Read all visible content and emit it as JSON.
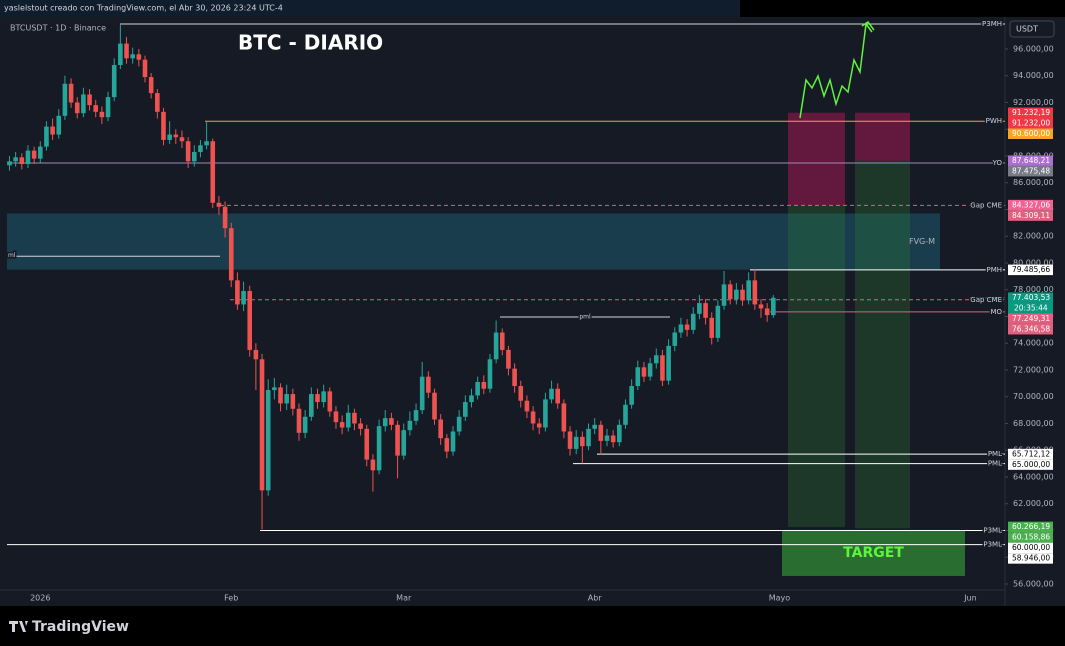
{
  "chart_data": {
    "type": "candlestick",
    "title": "BTC - DIARIO",
    "credit": "yaslelstout creado con TradingView.com, el Abr 30, 2026 23:24 UTC-4",
    "symbol": "BTCUSDT · 1D · Binance",
    "currency": "USDT",
    "brand": "TradingView",
    "countdown": "20:35:44",
    "up_color": "#26a69a",
    "down_color": "#ef5350",
    "categories": [
      null,
      null,
      null,
      null,
      null,
      "2026",
      null,
      null,
      null,
      null,
      null,
      null,
      null,
      null,
      null,
      null,
      null,
      null,
      null,
      null,
      null,
      null,
      null,
      null,
      null,
      null,
      null,
      null,
      null,
      null,
      null,
      null,
      null,
      null,
      null,
      null,
      "Feb",
      null,
      null,
      null,
      null,
      null,
      null,
      null,
      null,
      null,
      null,
      null,
      null,
      null,
      null,
      null,
      null,
      null,
      null,
      null,
      null,
      null,
      null,
      null,
      null,
      null,
      null,
      null,
      "Mar",
      null,
      null,
      null,
      null,
      null,
      null,
      null,
      null,
      null,
      null,
      null,
      null,
      null,
      null,
      null,
      null,
      null,
      null,
      null,
      null,
      null,
      null,
      null,
      null,
      null,
      null,
      null,
      null,
      null,
      null,
      "Abr",
      null,
      null,
      null,
      null,
      null,
      null,
      null,
      null,
      null,
      null,
      null,
      null,
      null,
      null,
      null,
      null,
      null,
      null,
      null,
      null,
      null,
      null,
      null,
      null,
      null,
      null,
      null,
      null,
      null,
      "Mayo",
      null,
      null,
      null,
      null,
      null,
      null,
      null,
      null,
      null,
      null,
      null,
      null,
      null,
      null,
      null,
      null,
      null,
      null,
      null,
      null,
      null,
      null,
      null,
      null,
      null,
      null,
      null,
      null,
      null,
      null,
      "Jun"
    ],
    "open": [
      87300,
      87600,
      87900,
      87400,
      88400,
      87800,
      88700,
      90200,
      89600,
      91000,
      93400,
      92000,
      91200,
      92600,
      91800,
      91300,
      90900,
      92400,
      94800,
      96400,
      95300,
      95600,
      95200,
      93900,
      92700,
      91300,
      89200,
      89600,
      89400,
      89100,
      87600,
      88300,
      88800,
      89100,
      84500,
      84200,
      82600,
      78700,
      76900,
      77900,
      73500,
      72800,
      63000,
      70500,
      70700,
      69500,
      70200,
      69100,
      67300,
      68500,
      70200,
      69600,
      70400,
      68900,
      68100,
      67700,
      68800,
      68000,
      67600,
      65300,
      64500,
      67800,
      68400,
      67900,
      65600,
      67500,
      68200,
      69000,
      71500,
      70300,
      68300,
      66900,
      65900,
      67400,
      68500,
      69600,
      70100,
      71100,
      70600,
      72800,
      74800,
      73500,
      72100,
      70800,
      69700,
      68900,
      68000,
      67700,
      69800,
      70600,
      69500,
      67400,
      66100,
      67000,
      66300,
      67600,
      67900,
      66700,
      67100,
      66600,
      67900,
      69400,
      70800,
      72200,
      71500,
      72500,
      73100,
      71200,
      73800,
      74800,
      75400,
      75000,
      76200,
      77000,
      75900,
      74400,
      76800,
      78400,
      77300,
      78000,
      77200,
      78700,
      76900,
      76600,
      76100,
      null,
      null,
      null,
      null,
      null,
      null,
      null,
      null,
      null,
      null,
      null,
      null,
      null,
      null,
      null,
      null,
      null,
      null,
      null,
      null,
      null,
      null,
      null,
      null,
      null,
      null,
      null,
      null,
      null,
      null,
      null,
      null
    ],
    "high": [
      88000,
      88300,
      88200,
      88800,
      88700,
      89100,
      90600,
      90800,
      91500,
      94000,
      93800,
      92400,
      93100,
      93000,
      92200,
      91700,
      92800,
      95300,
      97800,
      96900,
      96100,
      96000,
      95500,
      94200,
      93000,
      91600,
      90600,
      90000,
      89900,
      89400,
      88800,
      89200,
      90600,
      89300,
      85000,
      84600,
      83000,
      79300,
      78600,
      78300,
      74000,
      73200,
      71300,
      71400,
      71000,
      70900,
      70600,
      69500,
      69000,
      70700,
      70600,
      70900,
      70700,
      69300,
      68600,
      69400,
      69100,
      68400,
      67900,
      65700,
      68300,
      69000,
      68800,
      68200,
      68000,
      68900,
      69500,
      72600,
      71900,
      70600,
      68700,
      67200,
      67800,
      69000,
      70100,
      70600,
      71500,
      71600,
      73200,
      75700,
      75100,
      73800,
      72500,
      71200,
      70100,
      69300,
      68400,
      70300,
      71200,
      71000,
      69800,
      67800,
      67500,
      67400,
      68000,
      68400,
      68200,
      67600,
      67500,
      68300,
      69800,
      71300,
      72700,
      72600,
      72900,
      73600,
      73500,
      74300,
      75200,
      75900,
      75800,
      76700,
      77600,
      77300,
      76300,
      77200,
      79400,
      78700,
      78500,
      78400,
      79300,
      79500,
      77300,
      77000,
      77600,
      null,
      null,
      null,
      null,
      null,
      null,
      null,
      null,
      null,
      null,
      null,
      null,
      null,
      null,
      null,
      null,
      null,
      null,
      null,
      null,
      null,
      null,
      null,
      null,
      null,
      null,
      null,
      null,
      null,
      null,
      null,
      null
    ],
    "low": [
      86900,
      87200,
      87000,
      87100,
      87400,
      87500,
      88400,
      89200,
      89300,
      90700,
      91600,
      90800,
      90900,
      91400,
      90900,
      90400,
      90600,
      92100,
      94500,
      94900,
      94900,
      94700,
      93500,
      92300,
      90800,
      88800,
      88900,
      88900,
      88600,
      87100,
      87200,
      87900,
      88500,
      84100,
      83600,
      81900,
      78200,
      76500,
      76400,
      73000,
      70500,
      60100,
      62600,
      69800,
      68900,
      69000,
      68600,
      66700,
      66900,
      68200,
      69100,
      69200,
      68500,
      67600,
      67200,
      67400,
      67500,
      67100,
      64800,
      62900,
      64200,
      67400,
      67500,
      63900,
      65300,
      67100,
      67900,
      68700,
      69900,
      67900,
      66400,
      65400,
      65600,
      67100,
      68200,
      69200,
      69800,
      70200,
      70300,
      72500,
      73100,
      71600,
      70300,
      69200,
      68400,
      67500,
      67200,
      67400,
      69500,
      69100,
      66900,
      65600,
      65700,
      65000,
      66000,
      67200,
      65700,
      66300,
      66200,
      66300,
      67600,
      69100,
      70500,
      71100,
      71200,
      72100,
      70800,
      70900,
      73400,
      74400,
      74500,
      74700,
      75800,
      75400,
      73900,
      74100,
      76500,
      76900,
      76900,
      76800,
      76900,
      76500,
      75900,
      75600,
      75900,
      null,
      null,
      null,
      null,
      null,
      null,
      null,
      null,
      null,
      null,
      null,
      null,
      null,
      null,
      null,
      null,
      null,
      null,
      null,
      null,
      null,
      null,
      null,
      null,
      null,
      null,
      null,
      null,
      null,
      null,
      null,
      null
    ],
    "close": [
      87600,
      87900,
      87400,
      88400,
      87800,
      88700,
      90200,
      89600,
      91000,
      93400,
      92000,
      91200,
      92600,
      91800,
      91300,
      90900,
      92400,
      94800,
      96400,
      95300,
      95600,
      95200,
      93900,
      92700,
      91300,
      89200,
      89600,
      89400,
      89100,
      87600,
      88300,
      88800,
      89100,
      84500,
      84200,
      82600,
      78700,
      76900,
      77900,
      73500,
      72800,
      63000,
      70500,
      70700,
      69500,
      70200,
      69100,
      67300,
      68500,
      70200,
      69600,
      70400,
      68900,
      68100,
      67700,
      68800,
      68000,
      67600,
      65300,
      64500,
      67800,
      68400,
      67900,
      65600,
      67500,
      68200,
      69000,
      71500,
      70300,
      68300,
      66900,
      65900,
      67400,
      68500,
      69600,
      70100,
      71100,
      70600,
      72800,
      74800,
      73500,
      72100,
      70800,
      69700,
      68900,
      68000,
      67700,
      69800,
      70600,
      69500,
      67400,
      66100,
      67000,
      66300,
      67600,
      67900,
      66700,
      67100,
      66600,
      67900,
      69400,
      70800,
      72200,
      71500,
      72500,
      73100,
      71200,
      73800,
      74800,
      75400,
      75000,
      76200,
      77000,
      75900,
      74400,
      76800,
      78400,
      77300,
      78000,
      77200,
      78700,
      76900,
      76600,
      76100,
      77400,
      null,
      null,
      null,
      null,
      null,
      null,
      null,
      null,
      null,
      null,
      null,
      null,
      null,
      null,
      null,
      null,
      null,
      null,
      null,
      null,
      null,
      null,
      null,
      null,
      null,
      null,
      null,
      null,
      null,
      null,
      null,
      null
    ],
    "last_price": {
      "value": 77403.53,
      "label": "77.403,53",
      "color": "#089981"
    },
    "ylim": [
      55550,
      98390
    ],
    "yticks": [
      {
        "value": 56000,
        "label": "56.000,00"
      },
      {
        "value": 58000,
        "label": "58.000,00"
      },
      {
        "value": 60000,
        "label": "60.000,00"
      },
      {
        "value": 62000,
        "label": "62.000,00"
      },
      {
        "value": 64000,
        "label": "64.000,00"
      },
      {
        "value": 66000,
        "label": "66.000,00"
      },
      {
        "value": 68000,
        "label": "68.000,00"
      },
      {
        "value": 70000,
        "label": "70.000,00"
      },
      {
        "value": 72000,
        "label": "72.000,00"
      },
      {
        "value": 74000,
        "label": "74.000,00"
      },
      {
        "value": 76000,
        "label": "76.000,00"
      },
      {
        "value": 78000,
        "label": "78.000,00"
      },
      {
        "value": 80000,
        "label": "80.000,00"
      },
      {
        "value": 82000,
        "label": "82.000,00"
      },
      {
        "value": 84000,
        "label": "84.000,00"
      },
      {
        "value": 86000,
        "label": "86.000,00"
      },
      {
        "value": 88000,
        "label": "88.000,00"
      },
      {
        "value": 90000,
        "label": "90.000,00"
      },
      {
        "value": 92000,
        "label": "92.000,00"
      },
      {
        "value": 94000,
        "label": "94.000,00"
      },
      {
        "value": 96000,
        "label": "96.000,00"
      }
    ],
    "levels": [
      {
        "label": "P3MH",
        "value": 97870,
        "color": "#d1d4dc"
      },
      {
        "label": "PWH",
        "value": 90600,
        "tag": "90.600,00",
        "color": "#f5a623"
      },
      {
        "label": "YO",
        "value": 87475.48,
        "tag": "87.475,48",
        "color": "#9c8bbf"
      },
      {
        "label": "Gap CME",
        "value": 84309.11,
        "tag": "84.309,11",
        "color": "#e0607e",
        "dashed": true
      },
      {
        "label": "PMH",
        "value": 79485.66,
        "tag": "79.485,66",
        "color": "#ffffff"
      },
      {
        "label": "Gap CME",
        "value": 77249.31,
        "tag": "77.249,31",
        "color": "#e0607e",
        "dashed": true
      },
      {
        "label": "MO",
        "value": 76346.58,
        "tag": "76.346,58",
        "color": "#e0607e"
      },
      {
        "label": "PML",
        "value": 65712.12,
        "tag": "65.712,12",
        "color": "#ffffff"
      },
      {
        "label": "PML",
        "value": 65000,
        "tag": "65.000,00",
        "color": "#ffffff"
      },
      {
        "label": "P3ML",
        "value": 60000,
        "tag": "60.000,00",
        "color": "#ffffff"
      },
      {
        "label": "P3ML",
        "value": 58946,
        "tag": "58.946,00",
        "color": "#ffffff"
      },
      {
        "label": "pml",
        "value": 75960,
        "color": "#d1d4dc"
      },
      {
        "label": "ml",
        "value": 80500,
        "color": "#d1d4dc"
      }
    ],
    "positions": [
      {
        "entry": 84327.06,
        "entry_label": "84.327,06",
        "entry_color": "#f06292",
        "stop": 91232.19,
        "stop_label": "91.232,19",
        "target": 60266.19,
        "target_label": "60.266,19"
      },
      {
        "entry": 87648.21,
        "entry_label": "87.648,21",
        "entry_color": "#ab6fd0",
        "stop": 91232,
        "stop_label": "91.232,00",
        "target": 60158.86,
        "target_label": "60.158,86"
      }
    ],
    "zones": [
      {
        "label": "FVG-M",
        "top": 83700,
        "bottom": 79500,
        "color": "#1e5b6e"
      },
      {
        "label": "TARGET",
        "top": 60000,
        "bottom": 56600,
        "color": "#2e7d32"
      }
    ]
  }
}
